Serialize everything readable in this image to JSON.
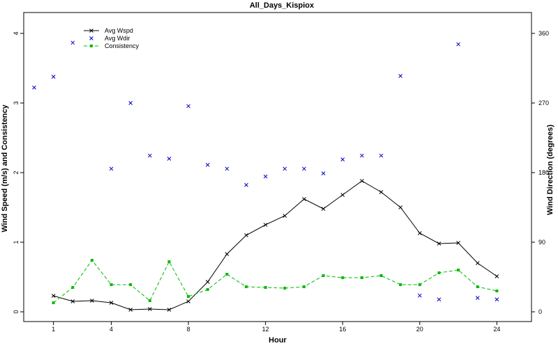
{
  "chart_data": {
    "type": "line",
    "title": "All_Days_Kispiox",
    "xlabel": "Hour",
    "ylabel_left": "Wind Speed (m/s) and Consistency",
    "ylabel_right": "Wind Direction (degrees)",
    "xlim": [
      0,
      25
    ],
    "ylim_left": [
      0,
      4.1
    ],
    "ylim_right": [
      0,
      369
    ],
    "x_ticks": [
      1,
      4,
      8,
      12,
      16,
      20,
      24
    ],
    "y_ticks_left": [
      0,
      1,
      2,
      3,
      4
    ],
    "y_ticks_right": [
      0,
      90,
      180,
      270,
      360
    ],
    "grid": false,
    "legend_position": "top-left",
    "series": [
      {
        "name": "Avg Wspd",
        "axis": "left",
        "style": "line-x",
        "color": "#000000",
        "x": [
          1,
          2,
          3,
          4,
          5,
          6,
          7,
          8,
          9,
          10,
          11,
          12,
          13,
          14,
          15,
          16,
          17,
          18,
          19,
          20,
          21,
          22,
          23,
          24
        ],
        "y": [
          0.23,
          0.15,
          0.16,
          0.13,
          0.03,
          0.04,
          0.03,
          0.15,
          0.43,
          0.83,
          1.1,
          1.25,
          1.38,
          1.62,
          1.48,
          1.68,
          1.88,
          1.72,
          1.5,
          1.13,
          0.98,
          0.99,
          0.7,
          0.51
        ]
      },
      {
        "name": "Avg Wdir",
        "axis": "right",
        "style": "marker-x",
        "color": "#0000cc",
        "x": [
          0,
          1,
          2,
          4,
          5,
          6,
          7,
          8,
          9,
          10,
          11,
          12,
          13,
          14,
          15,
          16,
          17,
          18,
          19,
          20,
          21,
          22,
          23,
          24
        ],
        "y": [
          290,
          304,
          348,
          185,
          270,
          202,
          198,
          266,
          190,
          185,
          164,
          175,
          185,
          185,
          179,
          197,
          202,
          202,
          305,
          21,
          16,
          346,
          18,
          16
        ]
      },
      {
        "name": "Consistency",
        "axis": "left",
        "style": "dashed-square",
        "color": "#00bb00",
        "x": [
          1,
          2,
          3,
          4,
          5,
          6,
          7,
          8,
          9,
          10,
          11,
          12,
          13,
          14,
          15,
          16,
          17,
          18,
          19,
          20,
          21,
          22,
          23,
          24
        ],
        "y": [
          0.13,
          0.35,
          0.74,
          0.39,
          0.39,
          0.16,
          0.72,
          0.22,
          0.32,
          0.54,
          0.36,
          0.35,
          0.34,
          0.36,
          0.52,
          0.49,
          0.49,
          0.52,
          0.39,
          0.39,
          0.56,
          0.6,
          0.36,
          0.3
        ]
      }
    ]
  }
}
